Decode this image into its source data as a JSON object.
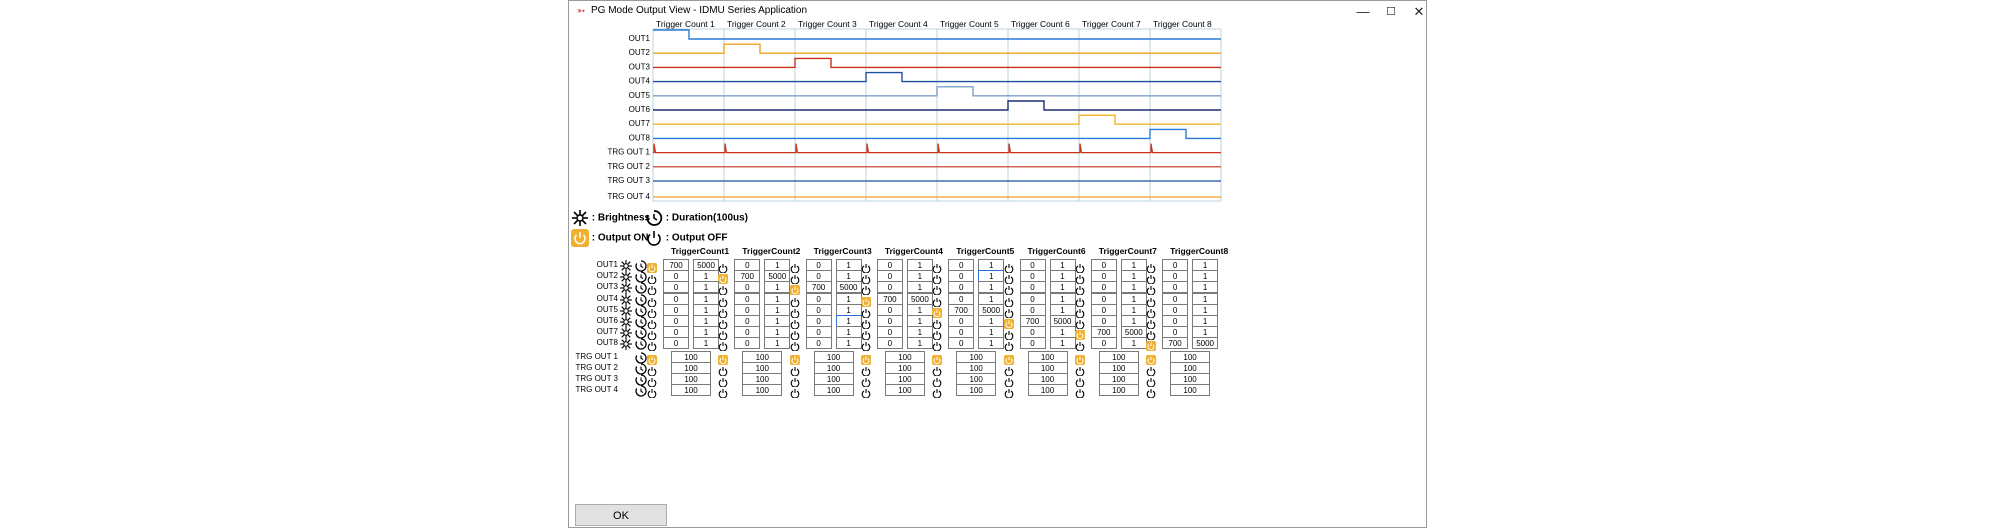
{
  "window": {
    "title": "PG Mode Output View  - IDMU Series Application",
    "app_icon": "app-logo-icon",
    "minimize": "—",
    "maximize": "☐",
    "close": "✕"
  },
  "timing": {
    "trigger_headers": [
      "Trigger Count 1",
      "Trigger Count 2",
      "Trigger Count 3",
      "Trigger Count 4",
      "Trigger Count 5",
      "Trigger Count 6",
      "Trigger Count 7",
      "Trigger Count 8"
    ],
    "rows": [
      {
        "label": "OUT1",
        "color": "#2a7ad5"
      },
      {
        "label": "OUT2",
        "color": "#f0a020"
      },
      {
        "label": "OUT3",
        "color": "#c8301a"
      },
      {
        "label": "OUT4",
        "color": "#1b4fa0"
      },
      {
        "label": "OUT5",
        "color": "#7fa0c8"
      },
      {
        "label": "OUT6",
        "color": "#1a2f6e"
      },
      {
        "label": "OUT7",
        "color": "#f2b52a"
      },
      {
        "label": "OUT8",
        "color": "#2a7ad5"
      },
      {
        "label": "TRG OUT 1",
        "color": "#c8301a"
      },
      {
        "label": "TRG OUT 2",
        "color": "#c8301a"
      },
      {
        "label": "TRG OUT 3",
        "color": "#1b4fa0"
      },
      {
        "label": "TRG OUT 4",
        "color": "#f0a020"
      }
    ]
  },
  "legend": {
    "brightness": ": Brightness",
    "duration": ": Duration(100us)",
    "output_on": ": Output ON",
    "output_off": ": Output OFF"
  },
  "colors": {
    "on_icon": "#f0b030",
    "grid": "#a8c8d8",
    "line_dark": "#1b4fa0"
  },
  "grid": {
    "headers": [
      "TriggerCount1",
      "TriggerCount2",
      "TriggerCount3",
      "TriggerCount4",
      "TriggerCount5",
      "TriggerCount6",
      "TriggerCount7",
      "TriggerCount8"
    ],
    "out_labels": [
      "OUT1",
      "OUT2",
      "OUT3",
      "OUT4",
      "OUT5",
      "OUT6",
      "OUT7",
      "OUT8"
    ],
    "trg_labels": [
      "TRG OUT 1",
      "TRG OUT 2",
      "TRG OUT 3",
      "TRG OUT 4"
    ],
    "on_brightness": "700",
    "on_duration": "5000",
    "off_brightness": "0",
    "off_duration": "1",
    "trg_value": "100"
  },
  "ok_label": "OK"
}
